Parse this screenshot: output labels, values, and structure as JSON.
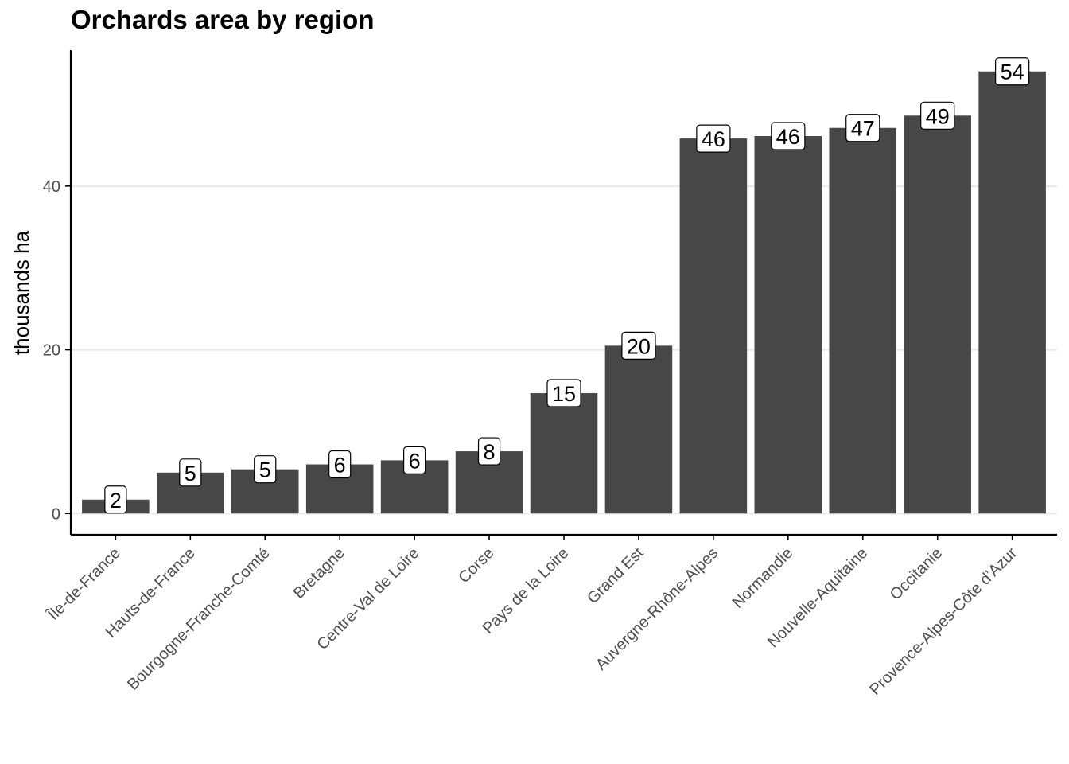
{
  "chart_data": {
    "type": "bar",
    "title": "Orchards area by region",
    "xlabel": "",
    "ylabel": "thousands ha",
    "ylim": [
      -2.6,
      56.6
    ],
    "yticks": [
      0,
      20,
      40
    ],
    "grid": "horizontal",
    "categories": [
      "Île-de-France",
      "Hauts-de-France",
      "Bourgogne-Franche-Comté",
      "Bretagne",
      "Centre-Val de Loire",
      "Corse",
      "Pays de la Loire",
      "Grand Est",
      "Auvergne-Rhône-Alpes",
      "Normandie",
      "Nouvelle-Aquitaine",
      "Occitanie",
      "Provence-Alpes-Côte d’Azur"
    ],
    "values": [
      1.7,
      5.0,
      5.4,
      6.0,
      6.5,
      7.6,
      14.7,
      20.5,
      45.8,
      46.1,
      47.1,
      48.6,
      54.0
    ],
    "data_labels": [
      "2",
      "5",
      "5",
      "6",
      "6",
      "8",
      "15",
      "20",
      "46",
      "46",
      "47",
      "49",
      "54"
    ],
    "colors": {
      "bar": "#474747",
      "grid": "#ebebeb",
      "axis": "#000000",
      "label_bg": "#ffffff"
    }
  }
}
